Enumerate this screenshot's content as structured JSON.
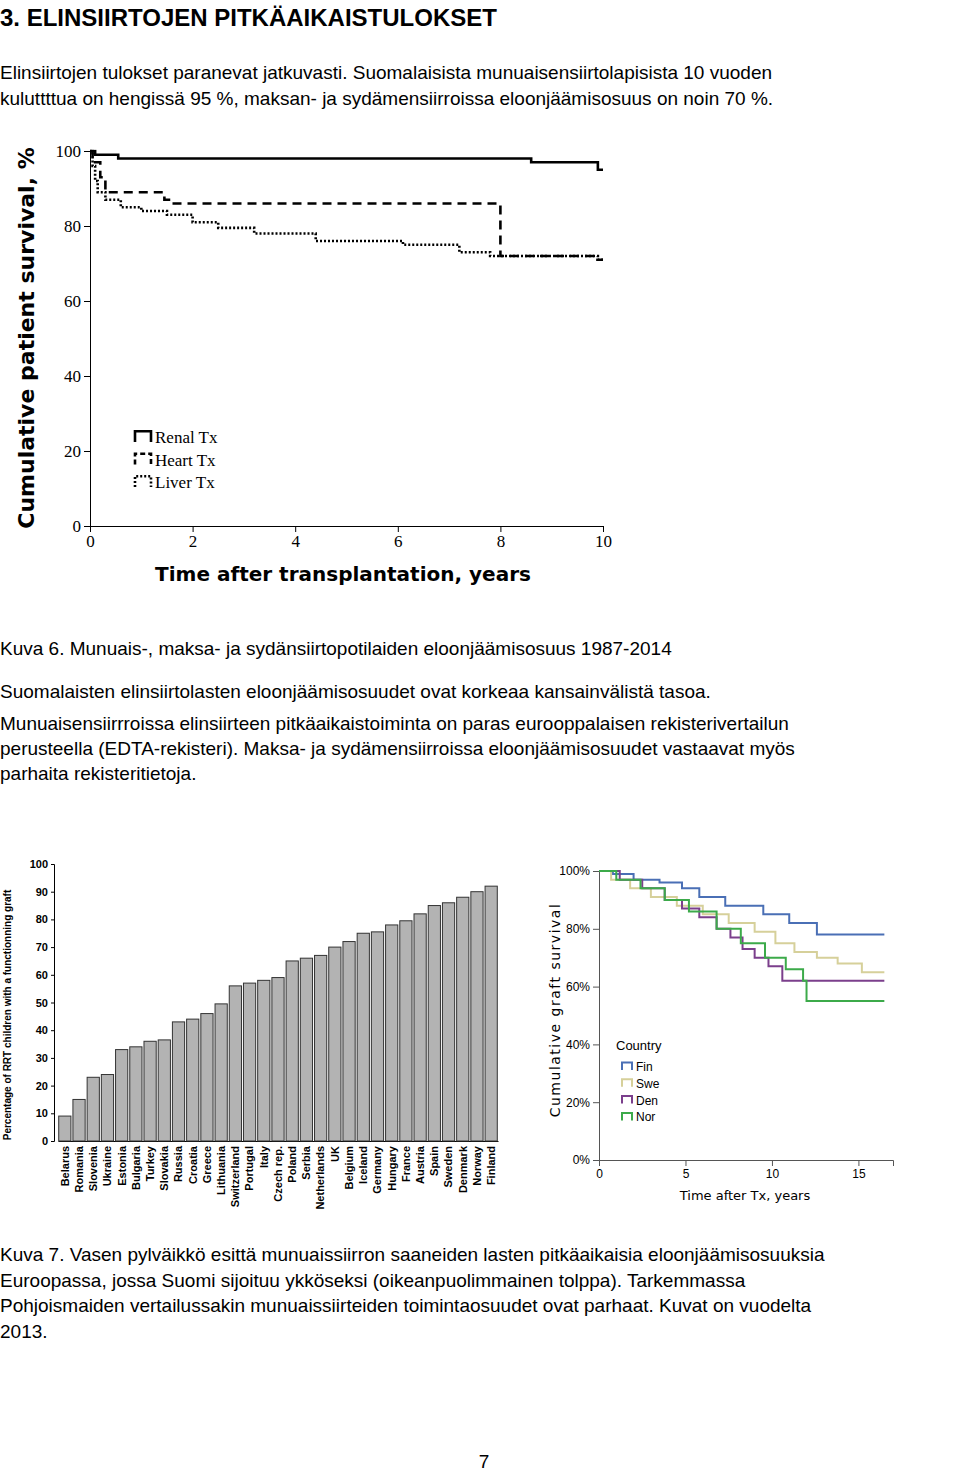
{
  "heading": "3. ELINSIIRTOJEN PITKÄAIKAISTULOKSET",
  "intro": [
    "Elinsiirtojen tulokset paranevat jatkuvasti. Suomalaisista munuaisensiirtolapisista 10 vuoden",
    "kuluttttua on hengissä 95 %, maksan- ja sydämensiirroissa eloonjäämisosuus on noin 70 %."
  ],
  "figure_6_caption": "Kuva 6. Munuais-, maksa- ja sydänsiirtopotilaiden eloonjäämisosuus 1987-2014",
  "paragraph_1": [
    "Suomalaisten elinsiirtolasten eloonjäämisosuudet ovat korkeaa kansainvälistä tasoa."
  ],
  "paragraph_2": [
    "Munuaisensiirrroissa elinsiirteen pitkäaikaistoiminta on paras eurooppalaisen rekisterivertailun",
    "perusteella (EDTA-rekisteri). Maksa- ja sydämensiirroissa eloonjäämisosuudet vastaavat myös",
    "parhaita rekisteritietoja."
  ],
  "figure_7_caption": [
    "Kuva 7. Vasen pylväikkö esittä munuaissiirron saaneiden lasten pitkäaikaisia eloonjäämisosuuksia",
    "Euroopassa, jossa Suomi sijoituu ykköseksi (oikeanpuolimmainen tolppa). Tarkemmassa",
    "Pohjoismaiden vertailussakin munuaissiirteiden toimintaosuudet ovat parhaat. Kuvat on vuodelta",
    "2013."
  ],
  "page_number": 7,
  "chart_data": [
    {
      "type": "line",
      "x_label": "Time after transplantation, years",
      "y_label": "Cumulative patient survival, %",
      "xlim": [
        0,
        10
      ],
      "ylim": [
        0,
        100
      ],
      "xticks": [
        0,
        2,
        4,
        6,
        8,
        10
      ],
      "yticks": [
        0,
        20,
        40,
        60,
        80,
        100
      ],
      "series": [
        {
          "name": "Renal Tx",
          "color": "#000000",
          "line_style": "solid",
          "x": [
            0,
            0.1,
            0.55,
            8.6,
            9.9,
            10
          ],
          "values": [
            100,
            99,
            98,
            97,
            95,
            95
          ]
        },
        {
          "name": "Heart Tx",
          "color": "#000000",
          "line_style": "dashed",
          "x": [
            0,
            0.05,
            0.2,
            0.3,
            1.45,
            1.6,
            8.0,
            9.8,
            10
          ],
          "values": [
            100,
            97,
            93,
            89,
            87,
            86,
            72,
            71,
            71
          ]
        },
        {
          "name": "Liver Tx",
          "color": "#000000",
          "line_style": "dotted",
          "x": [
            0,
            0.05,
            0.1,
            0.15,
            0.3,
            0.6,
            1.0,
            1.5,
            2.0,
            2.5,
            3.2,
            4.4,
            6.1,
            7.2,
            7.8,
            9.9,
            10
          ],
          "values": [
            100,
            96,
            92,
            89,
            87,
            85,
            84,
            83,
            81,
            79.5,
            78,
            76,
            75,
            73,
            72,
            71,
            71
          ]
        }
      ]
    },
    {
      "type": "bar",
      "y_label": "Percentage of RRT children with a functionning graft",
      "categories": [
        "Belarus",
        "Romania",
        "Slovenia",
        "Ukraine",
        "Estonia",
        "Bulgaria",
        "Turkey",
        "Slovakia",
        "Russia",
        "Croatia",
        "Greece",
        "Lithuania",
        "Switzerland",
        "Portugal",
        "Italy",
        "Czech rep.",
        "Poland",
        "Serbia",
        "Netherlands",
        "UK",
        "Belgium",
        "Iceland",
        "Germany",
        "Hungary",
        "France",
        "Austria",
        "Spain",
        "Sweden",
        "Denmark",
        "Norway",
        "Finland"
      ],
      "values": [
        9,
        15,
        23,
        24,
        33,
        34,
        36,
        36.5,
        43,
        44,
        46,
        49.5,
        56,
        57,
        58,
        59,
        65,
        66,
        67,
        70,
        72,
        75,
        75.5,
        78,
        79.5,
        82,
        85,
        86,
        88,
        90,
        92
      ],
      "color": "#b3b3b3",
      "ylim": [
        0,
        100
      ],
      "yticks": [
        0,
        10,
        20,
        30,
        40,
        50,
        60,
        70,
        80,
        90,
        100
      ]
    },
    {
      "type": "line",
      "x_label": "Time after Tx, years",
      "y_label": "Cumulative graft survival",
      "legend_title": "Country",
      "xlim": [
        0,
        17
      ],
      "ylim": [
        0,
        100
      ],
      "xticks": [
        0,
        5,
        10,
        15
      ],
      "yticks": [
        {
          "value": 0,
          "label": "0%"
        },
        {
          "value": 20,
          "label": "20%"
        },
        {
          "value": 40,
          "label": "40%"
        },
        {
          "value": 60,
          "label": "60%"
        },
        {
          "value": 80,
          "label": "80%"
        },
        {
          "value": 100,
          "label": "100%"
        }
      ],
      "series": [
        {
          "name": "Fin",
          "color": "#4a6fb5",
          "line_style": "solid",
          "x": [
            0,
            0.8,
            2.0,
            3.5,
            4.8,
            5.8,
            7.3,
            9.5,
            11.0,
            12.6,
            16.5
          ],
          "values": [
            100,
            99,
            97,
            96,
            94,
            91,
            88,
            85,
            82,
            78,
            78
          ]
        },
        {
          "name": "Swe",
          "color": "#d6d09a",
          "line_style": "solid",
          "x": [
            0,
            0.7,
            1.8,
            3.0,
            4.5,
            6.0,
            7.5,
            9.0,
            10.2,
            11.3,
            12.6,
            13.8,
            15.2,
            16.5
          ],
          "values": [
            100,
            97,
            94,
            91,
            88,
            85,
            82,
            79,
            75,
            72,
            70,
            68,
            65,
            65
          ]
        },
        {
          "name": "Den",
          "color": "#7b3f8c",
          "line_style": "solid",
          "x": [
            0,
            1.2,
            2.5,
            3.8,
            4.8,
            5.8,
            6.8,
            7.6,
            8.3,
            9.0,
            9.8,
            10.6,
            16.5
          ],
          "values": [
            100,
            97,
            94,
            90,
            87,
            84,
            80,
            77,
            73,
            70,
            67,
            62,
            62
          ]
        },
        {
          "name": "Nor",
          "color": "#3caa4a",
          "line_style": "solid",
          "x": [
            0,
            1.0,
            2.4,
            3.8,
            5.2,
            6.8,
            8.2,
            9.6,
            10.8,
            11.8,
            12.0,
            16.5
          ],
          "values": [
            100,
            97,
            94,
            90,
            86,
            80,
            75,
            70,
            66,
            62,
            55,
            55
          ]
        }
      ]
    }
  ]
}
